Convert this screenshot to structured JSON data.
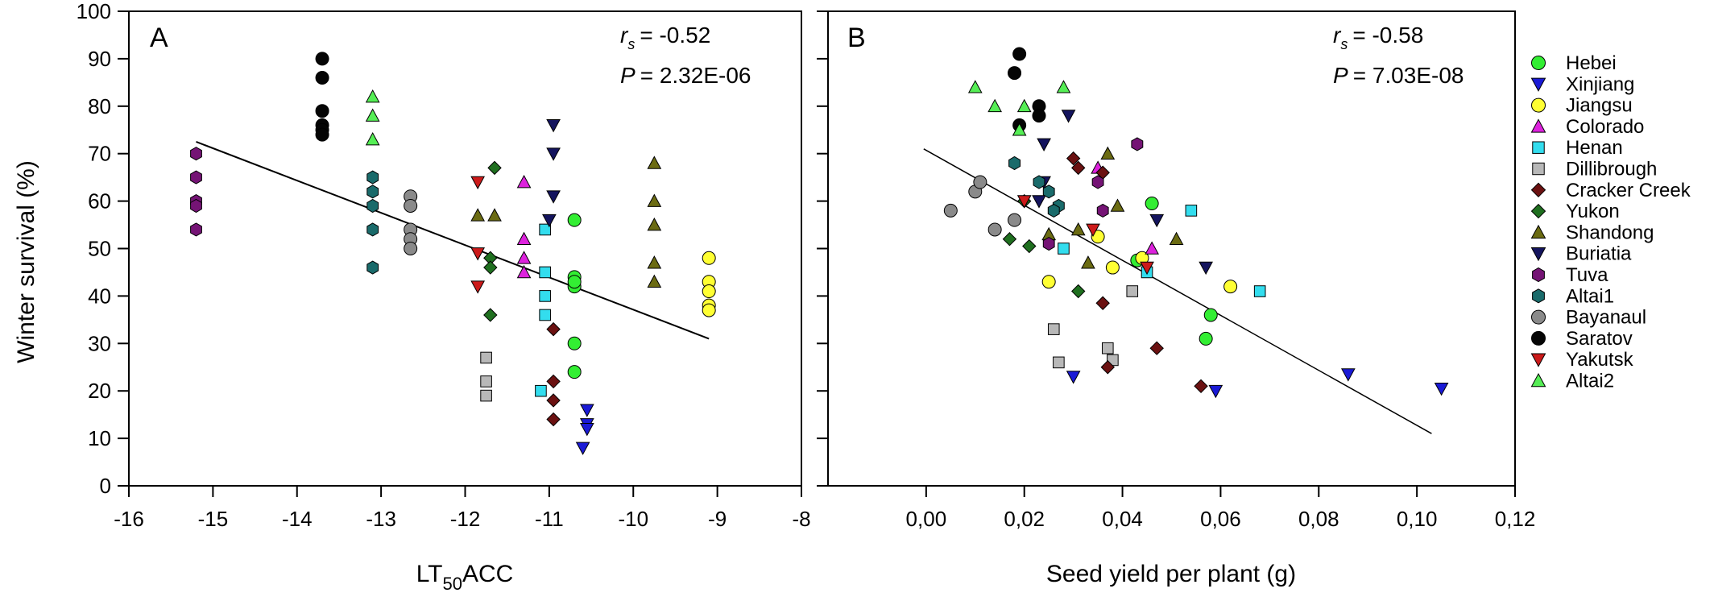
{
  "figure": {
    "y_axis_title": "Winter survival (%)"
  },
  "chart_data": [
    {
      "type": "scatter",
      "panel": "A",
      "xlabel": "LT50ACC",
      "xlabel_parts": {
        "pre": "LT",
        "sub": "50",
        "post": "ACC"
      },
      "ylabel": "Winter survival (%)",
      "xlim": [
        -16,
        -8
      ],
      "ylim": [
        0,
        100
      ],
      "x_ticks": [
        -16,
        -15,
        -14,
        -13,
        -12,
        -11,
        -10,
        -9,
        -8
      ],
      "x_tick_labels": [
        "-16",
        "-15",
        "-14",
        "-13",
        "-12",
        "-11",
        "-10",
        "-9",
        "-8"
      ],
      "y_ticks": [
        0,
        10,
        20,
        30,
        40,
        50,
        60,
        70,
        80,
        90,
        100
      ],
      "y_tick_labels": [
        "0",
        "10",
        "20",
        "30",
        "40",
        "50",
        "60",
        "70",
        "80",
        "90",
        "100"
      ],
      "stat_r_label": "r",
      "stat_r_sub": "s",
      "stat_r_value": "= -0.52",
      "stat_p_label": "P",
      "stat_p_value": "= 2.32E-06",
      "trendline": {
        "x": [
          -15.2,
          -9.1
        ],
        "y": [
          72.5,
          31
        ]
      },
      "grid": false,
      "series": [
        {
          "name": "Tuva",
          "x": [
            -15.2,
            -15.2,
            -15.2,
            -15.2,
            -15.2
          ],
          "y": [
            70,
            65,
            60,
            59,
            54
          ]
        },
        {
          "name": "Saratov",
          "x": [
            -13.7,
            -13.7,
            -13.7,
            -13.7,
            -13.7,
            -13.7
          ],
          "y": [
            90,
            86,
            79,
            76,
            75,
            74
          ]
        },
        {
          "name": "Altai2",
          "x": [
            -13.1,
            -13.1,
            -13.1
          ],
          "y": [
            82,
            78,
            73
          ]
        },
        {
          "name": "Altai1",
          "x": [
            -13.1,
            -13.1,
            -13.1,
            -13.1,
            -13.1
          ],
          "y": [
            65,
            62,
            59,
            54,
            46
          ]
        },
        {
          "name": "Bayanaul",
          "x": [
            -12.65,
            -12.65,
            -12.65,
            -12.65,
            -12.65
          ],
          "y": [
            61,
            59,
            54,
            52,
            50
          ]
        },
        {
          "name": "Yakutsk",
          "x": [
            -11.85,
            -11.85,
            -11.85
          ],
          "y": [
            64,
            49,
            42
          ]
        },
        {
          "name": "Shandong",
          "x": [
            -11.85,
            -11.65,
            -9.75,
            -9.75,
            -9.75,
            -9.75,
            -9.75
          ],
          "y": [
            57,
            57,
            68,
            60,
            55,
            47,
            43
          ]
        },
        {
          "name": "Yukon",
          "x": [
            -11.65,
            -11.7,
            -11.7,
            -11.7
          ],
          "y": [
            67,
            48,
            46,
            36
          ]
        },
        {
          "name": "Dillibrough",
          "x": [
            -11.75,
            -11.75,
            -11.75
          ],
          "y": [
            27,
            22,
            19
          ]
        },
        {
          "name": "Colorado",
          "x": [
            -11.3,
            -11.3,
            -11.3,
            -11.3
          ],
          "y": [
            64,
            52,
            48,
            45
          ]
        },
        {
          "name": "Henan",
          "x": [
            -11.05,
            -11.05,
            -11.05,
            -11.05,
            -11.1
          ],
          "y": [
            54,
            45,
            40,
            36,
            20
          ]
        },
        {
          "name": "Buriatia",
          "x": [
            -10.95,
            -10.95,
            -10.95,
            -11.0
          ],
          "y": [
            76,
            70,
            61,
            56
          ]
        },
        {
          "name": "Cracker Creek",
          "x": [
            -10.95,
            -10.95,
            -10.95,
            -10.95
          ],
          "y": [
            33,
            22,
            18,
            14
          ]
        },
        {
          "name": "Xinjiang",
          "x": [
            -10.55,
            -10.55,
            -10.55,
            -10.6
          ],
          "y": [
            16,
            13,
            12,
            8
          ]
        },
        {
          "name": "Hebei",
          "x": [
            -10.7,
            -10.7,
            -10.7,
            -10.7,
            -10.7,
            -10.7
          ],
          "y": [
            56,
            44,
            42,
            30,
            24,
            43
          ]
        },
        {
          "name": "Jiangsu",
          "x": [
            -9.1,
            -9.1,
            -9.1,
            -9.1,
            -9.1
          ],
          "y": [
            48,
            43,
            41,
            38,
            37
          ]
        }
      ]
    },
    {
      "type": "scatter",
      "panel": "B",
      "xlabel": "Seed yield per plant (g)",
      "ylabel": "Winter survival (%)",
      "xlim": [
        -0.02,
        0.12
      ],
      "ylim": [
        0,
        100
      ],
      "x_ticks": [
        0,
        0.02,
        0.04,
        0.06,
        0.08,
        0.1,
        0.12
      ],
      "x_tick_labels": [
        "0,00",
        "0,02",
        "0,04",
        "0,06",
        "0,08",
        "0,10",
        "0,12"
      ],
      "y_ticks": [
        0,
        10,
        20,
        30,
        40,
        50,
        60,
        70,
        80,
        90,
        100
      ],
      "stat_r_label": "r",
      "stat_r_sub": "s",
      "stat_r_value": "= -0.58",
      "stat_p_label": "P",
      "stat_p_value": "= 7.03E-08",
      "trendline": {
        "x": [
          -0.0005,
          0.103
        ],
        "y": [
          71,
          11
        ]
      },
      "grid": false,
      "series": [
        {
          "name": "Hebei",
          "x": [
            0.046,
            0.043,
            0.058,
            0.057
          ],
          "y": [
            59.5,
            47.5,
            36,
            31
          ]
        },
        {
          "name": "Xinjiang",
          "x": [
            0.03,
            0.059,
            0.086,
            0.105
          ],
          "y": [
            23,
            20,
            23.5,
            20.5
          ]
        },
        {
          "name": "Jiangsu",
          "x": [
            0.035,
            0.025,
            0.038,
            0.044,
            0.062
          ],
          "y": [
            52.5,
            43,
            46,
            48,
            42
          ]
        },
        {
          "name": "Colorado",
          "x": [
            0.035,
            0.046
          ],
          "y": [
            67,
            50
          ]
        },
        {
          "name": "Henan",
          "x": [
            0.028,
            0.054,
            0.045,
            0.068
          ],
          "y": [
            50,
            58,
            45,
            41
          ]
        },
        {
          "name": "Dillibrough",
          "x": [
            0.026,
            0.027,
            0.037,
            0.038,
            0.042
          ],
          "y": [
            33,
            26,
            29,
            26.5,
            41
          ]
        },
        {
          "name": "Cracker Creek",
          "x": [
            0.03,
            0.031,
            0.036,
            0.036,
            0.037,
            0.047,
            0.056
          ],
          "y": [
            69,
            67,
            66,
            38.5,
            25,
            29,
            21
          ]
        },
        {
          "name": "Yukon",
          "x": [
            0.017,
            0.021,
            0.031,
            0.02
          ],
          "y": [
            52,
            50.5,
            41,
            60
          ]
        },
        {
          "name": "Shandong",
          "x": [
            0.037,
            0.039,
            0.025,
            0.031,
            0.033,
            0.051
          ],
          "y": [
            70,
            59,
            53,
            54,
            47,
            52
          ]
        },
        {
          "name": "Buriatia",
          "x": [
            0.029,
            0.024,
            0.024,
            0.023,
            0.047,
            0.057
          ],
          "y": [
            78,
            72,
            64,
            60,
            56,
            46
          ]
        },
        {
          "name": "Tuva",
          "x": [
            0.043,
            0.036,
            0.035,
            0.025
          ],
          "y": [
            72,
            58,
            64,
            51
          ]
        },
        {
          "name": "Altai1",
          "x": [
            0.018,
            0.023,
            0.025,
            0.027,
            0.026
          ],
          "y": [
            68,
            64,
            62,
            59,
            58
          ]
        },
        {
          "name": "Bayanaul",
          "x": [
            0.005,
            0.01,
            0.011,
            0.014,
            0.018
          ],
          "y": [
            58,
            62,
            64,
            54,
            56
          ]
        },
        {
          "name": "Saratov",
          "x": [
            0.019,
            0.018,
            0.023,
            0.023,
            0.019
          ],
          "y": [
            91,
            87,
            80,
            78,
            76
          ]
        },
        {
          "name": "Yakutsk",
          "x": [
            0.02,
            0.034,
            0.045
          ],
          "y": [
            60,
            54,
            46
          ]
        },
        {
          "name": "Altai2",
          "x": [
            0.01,
            0.014,
            0.02,
            0.028,
            0.019
          ],
          "y": [
            84,
            80,
            80,
            84,
            75
          ]
        }
      ]
    }
  ],
  "legend": {
    "placement": "right",
    "entries": [
      {
        "label": "Hebei",
        "shape": "circle",
        "color": "#33ee33"
      },
      {
        "label": "Xinjiang",
        "shape": "triangle-down",
        "color": "#1a1ad6"
      },
      {
        "label": "Jiangsu",
        "shape": "circle",
        "color": "#ffff33"
      },
      {
        "label": "Colorado",
        "shape": "triangle-up",
        "color": "#dd22dd"
      },
      {
        "label": "Henan",
        "shape": "square",
        "color": "#33ddee"
      },
      {
        "label": "Dillibrough",
        "shape": "square",
        "color": "#b8b8b8"
      },
      {
        "label": "Cracker Creek",
        "shape": "diamond",
        "color": "#6b1111"
      },
      {
        "label": "Yukon",
        "shape": "diamond",
        "color": "#1f6f1f"
      },
      {
        "label": "Shandong",
        "shape": "triangle-up",
        "color": "#6b6b12"
      },
      {
        "label": "Buriatia",
        "shape": "triangle-down",
        "color": "#14145e"
      },
      {
        "label": "Tuva",
        "shape": "hexagon",
        "color": "#751475"
      },
      {
        "label": "Altai1",
        "shape": "hexagon",
        "color": "#1a6b6b"
      },
      {
        "label": "Bayanaul",
        "shape": "circle",
        "color": "#8a8a8a"
      },
      {
        "label": "Saratov",
        "shape": "circle",
        "color": "#050505"
      },
      {
        "label": "Yakutsk",
        "shape": "triangle-down",
        "color": "#cc1a1a"
      },
      {
        "label": "Altai2",
        "shape": "triangle-up",
        "color": "#55ee55"
      }
    ]
  }
}
